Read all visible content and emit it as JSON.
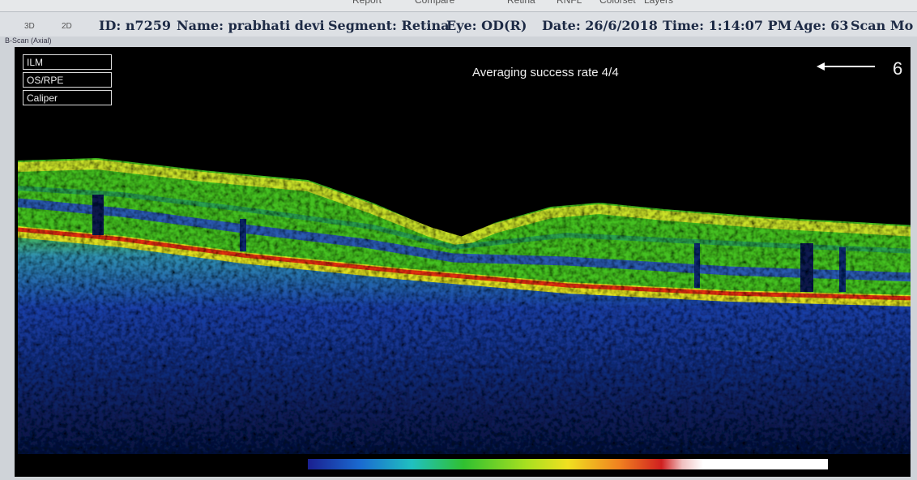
{
  "toolbar": {
    "items": [
      "Report",
      "Compare",
      "Retina",
      "RNFL",
      "Colorset",
      "Layers"
    ],
    "view_tabs": [
      "3D",
      "2D"
    ]
  },
  "header": {
    "fields": [
      "ID: n7259",
      "Name: prabhati devi",
      "Segment: Retina",
      "Eye: OD(R)",
      "Date: 26/6/2018",
      "Time: 1:14:07 PM",
      "Age: 63",
      "Scan Mo"
    ]
  },
  "panel_title": "B-Scan (Axial)",
  "layer_buttons": [
    "ILM",
    "OS/RPE",
    "Caliper"
  ],
  "scan": {
    "status": "Averaging success rate 4/4",
    "marker": "6"
  }
}
